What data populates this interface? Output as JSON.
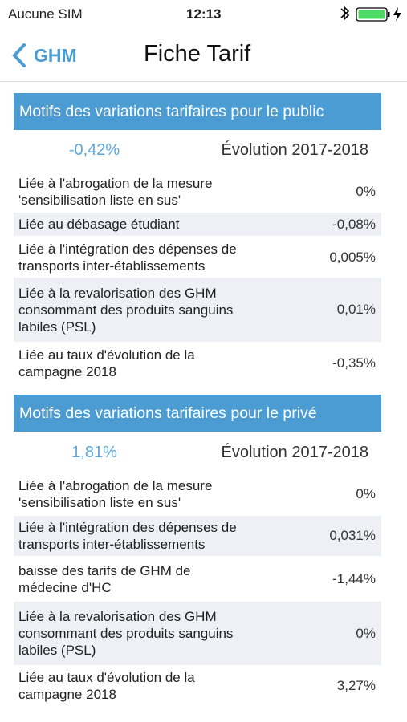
{
  "status_bar": {
    "carrier": "Aucune SIM",
    "time": "12:13"
  },
  "nav_bar": {
    "back": "GHM",
    "title": "Fiche Tarif"
  },
  "sections": [
    {
      "title": "Motifs des variations tarifaires pour le public",
      "total": "-0,42%",
      "period": "Évolution 2017-2018",
      "rows": [
        {
          "lines": [
            "Liée à l'abrogation de la mesure",
            "'sensibilisation liste en sus'"
          ],
          "value": "0%"
        },
        {
          "lines": [
            "Liée au débasage étudiant"
          ],
          "value": "-0,08%"
        },
        {
          "lines": [
            "Liée à l'intégration des dépenses de",
            "transports inter-établissements"
          ],
          "value": "0,005%"
        },
        {
          "lines": [
            "Liée à la revalorisation des GHM",
            "consommant des produits sanguins",
            "labiles (PSL)"
          ],
          "value": "0,01%"
        },
        {
          "lines": [
            "Liée au taux d'évolution de la",
            "campagne 2018"
          ],
          "value": "-0,35%"
        }
      ]
    },
    {
      "title": "Motifs des variations tarifaires pour le privé",
      "total": "1,81%",
      "period": "Évolution 2017-2018",
      "rows": [
        {
          "lines": [
            "Liée à l'abrogation de la mesure",
            "'sensibilisation liste en sus'"
          ],
          "value": "0%"
        },
        {
          "lines": [
            "Liée à l'intégration des dépenses de",
            "transports inter-établissements"
          ],
          "value": "0,031%"
        },
        {
          "lines": [
            "baisse des tarifs de GHM de",
            "médecine d'HC"
          ],
          "value": "-1,44%"
        },
        {
          "lines": [
            "Liée à la revalorisation des GHM",
            "consommant des produits sanguins",
            "labiles (PSL)"
          ],
          "value": "0%"
        },
        {
          "lines": [
            "Liée au taux d'évolution de la",
            "campagne 2018"
          ],
          "value": "3,27%"
        }
      ]
    }
  ]
}
